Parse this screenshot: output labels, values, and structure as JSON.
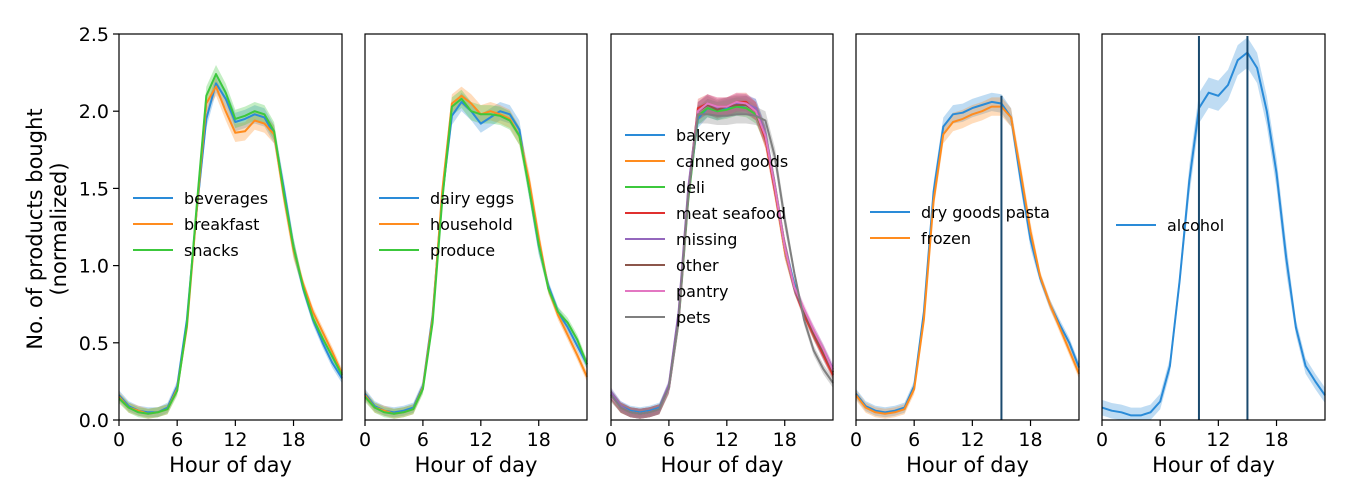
{
  "figure": {
    "ylabel_line1": "No. of products bought",
    "ylabel_line2": "(normalized)"
  },
  "colors": {
    "blue": "#1f77b4",
    "orange": "#ff7f0e",
    "green": "#2ca02c",
    "red": "#d62728",
    "purple": "#9467bd",
    "brown": "#8c564b",
    "pink": "#e377c2",
    "gray": "#7f7f7f",
    "vline": "#1a4a6e",
    "bright_blue": "#2a8bd8",
    "bright_orange": "#ff8c1e",
    "bright_green": "#3cc83c",
    "bright_red": "#e0302f"
  },
  "chart_data": [
    {
      "type": "line",
      "xlabel": "Hour of day",
      "ylabel": "No. of products bought (normalized)",
      "xlim": [
        0,
        23
      ],
      "ylim": [
        0,
        2.5
      ],
      "xticks": [
        "0",
        "6",
        "12",
        "18"
      ],
      "yticks": [
        "0.0",
        "0.5",
        "1.0",
        "1.5",
        "2.0",
        "2.5"
      ],
      "legend_position": "center-left",
      "vlines": [],
      "x": [
        0,
        1,
        2,
        3,
        4,
        5,
        6,
        7,
        8,
        9,
        10,
        11,
        12,
        13,
        14,
        15,
        16,
        17,
        18,
        19,
        20,
        21,
        22,
        23
      ],
      "series": [
        {
          "name": "beverages",
          "color": "bright_blue",
          "values": [
            0.16,
            0.09,
            0.06,
            0.05,
            0.05,
            0.08,
            0.22,
            0.65,
            1.35,
            1.95,
            2.18,
            2.08,
            1.93,
            1.95,
            1.98,
            1.96,
            1.85,
            1.5,
            1.12,
            0.85,
            0.65,
            0.5,
            0.37,
            0.27
          ]
        },
        {
          "name": "breakfast",
          "color": "bright_orange",
          "values": [
            0.15,
            0.08,
            0.06,
            0.04,
            0.05,
            0.07,
            0.2,
            0.6,
            1.35,
            2.05,
            2.16,
            2.0,
            1.86,
            1.87,
            1.94,
            1.92,
            1.85,
            1.45,
            1.1,
            0.88,
            0.7,
            0.57,
            0.44,
            0.3
          ]
        },
        {
          "name": "snacks",
          "color": "bright_green",
          "values": [
            0.14,
            0.08,
            0.05,
            0.04,
            0.05,
            0.07,
            0.19,
            0.62,
            1.38,
            2.1,
            2.24,
            2.12,
            1.95,
            1.97,
            2.0,
            1.98,
            1.87,
            1.47,
            1.12,
            0.86,
            0.66,
            0.53,
            0.41,
            0.29
          ]
        }
      ]
    },
    {
      "type": "line",
      "xlabel": "Hour of day",
      "xlim": [
        0,
        23
      ],
      "ylim": [
        0,
        2.5
      ],
      "xticks": [
        "0",
        "6",
        "12",
        "18"
      ],
      "legend_position": "center-left",
      "vlines": [],
      "x": [
        0,
        1,
        2,
        3,
        4,
        5,
        6,
        7,
        8,
        9,
        10,
        11,
        12,
        13,
        14,
        15,
        16,
        17,
        18,
        19,
        20,
        21,
        22,
        23
      ],
      "series": [
        {
          "name": "dairy eggs",
          "color": "bright_blue",
          "values": [
            0.17,
            0.09,
            0.06,
            0.05,
            0.06,
            0.08,
            0.22,
            0.68,
            1.45,
            1.97,
            2.06,
            2.0,
            1.92,
            1.96,
            2.0,
            1.98,
            1.88,
            1.5,
            1.13,
            0.87,
            0.7,
            0.6,
            0.48,
            0.36
          ]
        },
        {
          "name": "household",
          "color": "bright_orange",
          "values": [
            0.16,
            0.08,
            0.06,
            0.04,
            0.05,
            0.07,
            0.21,
            0.66,
            1.48,
            2.05,
            2.1,
            2.05,
            1.98,
            2.0,
            1.98,
            1.95,
            1.84,
            1.55,
            1.18,
            0.85,
            0.68,
            0.55,
            0.42,
            0.28
          ]
        },
        {
          "name": "produce",
          "color": "bright_green",
          "values": [
            0.15,
            0.08,
            0.05,
            0.04,
            0.05,
            0.07,
            0.2,
            0.63,
            1.42,
            2.03,
            2.08,
            2.0,
            1.98,
            1.98,
            1.97,
            1.94,
            1.84,
            1.5,
            1.14,
            0.85,
            0.7,
            0.63,
            0.52,
            0.36
          ]
        }
      ]
    },
    {
      "type": "line",
      "xlabel": "Hour of day",
      "xlim": [
        0,
        23
      ],
      "ylim": [
        0,
        2.5
      ],
      "xticks": [
        "0",
        "6",
        "12",
        "18"
      ],
      "legend_position": "center-left",
      "vlines": [],
      "x": [
        0,
        1,
        2,
        3,
        4,
        5,
        6,
        7,
        8,
        9,
        10,
        11,
        12,
        13,
        14,
        15,
        16,
        17,
        18,
        19,
        20,
        21,
        22,
        23
      ],
      "series": [
        {
          "name": "bakery",
          "color": "bright_blue",
          "values": [
            0.17,
            0.09,
            0.06,
            0.05,
            0.06,
            0.08,
            0.22,
            0.68,
            1.45,
            1.95,
            2.02,
            2.0,
            2.02,
            2.03,
            2.04,
            2.02,
            1.85,
            1.5,
            1.12,
            0.88,
            0.7,
            0.55,
            0.42,
            0.3
          ]
        },
        {
          "name": "canned goods",
          "color": "bright_orange",
          "values": [
            0.16,
            0.08,
            0.05,
            0.04,
            0.05,
            0.07,
            0.21,
            0.65,
            1.45,
            2.0,
            2.05,
            2.02,
            2.03,
            2.05,
            2.05,
            2.0,
            1.82,
            1.48,
            1.1,
            0.85,
            0.7,
            0.55,
            0.43,
            0.3
          ]
        },
        {
          "name": "deli",
          "color": "bright_green",
          "values": [
            0.15,
            0.08,
            0.05,
            0.04,
            0.05,
            0.07,
            0.2,
            0.63,
            1.42,
            1.97,
            2.02,
            2.0,
            2.01,
            2.03,
            2.02,
            1.98,
            1.84,
            1.5,
            1.12,
            0.85,
            0.7,
            0.56,
            0.45,
            0.31
          ]
        },
        {
          "name": "meat seafood",
          "color": "bright_red",
          "values": [
            0.16,
            0.08,
            0.05,
            0.04,
            0.05,
            0.07,
            0.21,
            0.66,
            1.48,
            2.02,
            2.05,
            2.03,
            2.03,
            2.06,
            2.06,
            2.0,
            1.82,
            1.48,
            1.12,
            0.85,
            0.68,
            0.55,
            0.42,
            0.29
          ]
        },
        {
          "name": "missing",
          "color": "purple",
          "values": [
            0.18,
            0.09,
            0.05,
            0.04,
            0.05,
            0.07,
            0.23,
            0.7,
            1.5,
            2.0,
            2.05,
            2.02,
            2.03,
            2.05,
            2.05,
            2.02,
            1.85,
            1.5,
            1.12,
            0.85,
            0.7,
            0.58,
            0.46,
            0.33
          ]
        },
        {
          "name": "other",
          "color": "brown",
          "values": [
            0.16,
            0.08,
            0.05,
            0.04,
            0.05,
            0.07,
            0.21,
            0.65,
            1.45,
            2.0,
            2.04,
            2.01,
            2.03,
            2.04,
            2.04,
            2.0,
            1.84,
            1.5,
            1.12,
            0.86,
            0.7,
            0.56,
            0.44,
            0.31
          ]
        },
        {
          "name": "pantry",
          "color": "pink",
          "values": [
            0.15,
            0.08,
            0.05,
            0.04,
            0.05,
            0.07,
            0.2,
            0.64,
            1.45,
            2.0,
            2.05,
            2.03,
            2.03,
            2.06,
            2.05,
            2.0,
            1.84,
            1.5,
            1.12,
            0.86,
            0.72,
            0.58,
            0.46,
            0.32
          ]
        },
        {
          "name": "pets",
          "color": "gray",
          "values": [
            0.16,
            0.08,
            0.05,
            0.04,
            0.05,
            0.07,
            0.21,
            0.65,
            1.45,
            1.98,
            1.98,
            1.97,
            1.97,
            1.98,
            1.98,
            1.97,
            1.94,
            1.7,
            1.3,
            0.95,
            0.65,
            0.45,
            0.33,
            0.24
          ]
        }
      ]
    },
    {
      "type": "line",
      "xlabel": "Hour of day",
      "xlim": [
        0,
        23
      ],
      "ylim": [
        0,
        2.5
      ],
      "xticks": [
        "0",
        "6",
        "12",
        "18"
      ],
      "legend_position": "center-left",
      "vlines": [
        15
      ],
      "x": [
        0,
        1,
        2,
        3,
        4,
        5,
        6,
        7,
        8,
        9,
        10,
        11,
        12,
        13,
        14,
        15,
        16,
        17,
        18,
        19,
        20,
        21,
        22,
        23
      ],
      "series": [
        {
          "name": "dry goods pasta",
          "color": "bright_blue",
          "values": [
            0.17,
            0.09,
            0.06,
            0.05,
            0.06,
            0.08,
            0.22,
            0.7,
            1.48,
            1.9,
            1.98,
            1.99,
            2.02,
            2.04,
            2.06,
            2.05,
            1.96,
            1.55,
            1.17,
            0.92,
            0.75,
            0.62,
            0.5,
            0.34
          ]
        },
        {
          "name": "frozen",
          "color": "bright_orange",
          "values": [
            0.16,
            0.08,
            0.05,
            0.04,
            0.05,
            0.07,
            0.2,
            0.65,
            1.42,
            1.85,
            1.93,
            1.95,
            1.98,
            2.0,
            2.03,
            2.03,
            1.96,
            1.6,
            1.22,
            0.93,
            0.75,
            0.6,
            0.45,
            0.3
          ]
        }
      ]
    },
    {
      "type": "line",
      "xlabel": "Hour of day",
      "xlim": [
        0,
        23
      ],
      "ylim": [
        0,
        2.5
      ],
      "xticks": [
        "0",
        "6",
        "12",
        "18"
      ],
      "legend_position": "center-left",
      "vlines": [
        10,
        15
      ],
      "x": [
        0,
        1,
        2,
        3,
        4,
        5,
        6,
        7,
        8,
        9,
        10,
        11,
        12,
        13,
        14,
        15,
        16,
        17,
        18,
        19,
        20,
        21,
        22,
        23
      ],
      "series": [
        {
          "name": "alcohol",
          "color": "bright_blue",
          "values": [
            0.08,
            0.06,
            0.05,
            0.03,
            0.03,
            0.05,
            0.12,
            0.35,
            0.9,
            1.55,
            2.02,
            2.12,
            2.1,
            2.17,
            2.33,
            2.38,
            2.28,
            2.0,
            1.6,
            1.05,
            0.6,
            0.35,
            0.25,
            0.16
          ]
        }
      ]
    }
  ]
}
